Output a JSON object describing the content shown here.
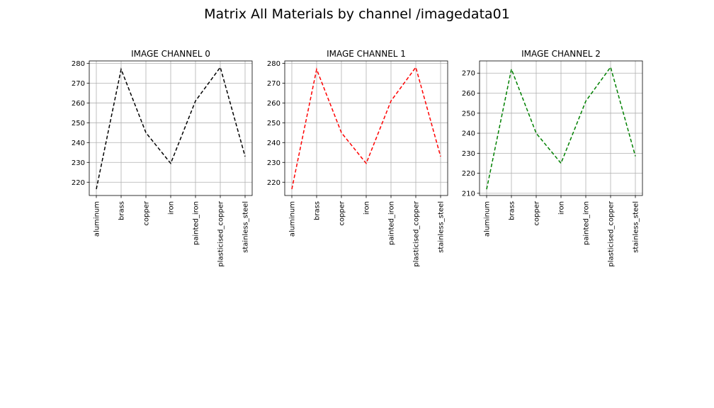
{
  "suptitle": "Matrix All Materials by channel /imagedata01",
  "chart_data": [
    {
      "type": "line",
      "title": "IMAGE CHANNEL 0",
      "categories": [
        "aluminum",
        "brass",
        "copper",
        "iron",
        "painted_iron",
        "plasticised_copper",
        "stainless_steel"
      ],
      "values": [
        216.5,
        277,
        245,
        229.5,
        261,
        278,
        233
      ],
      "ylim": [
        213.3,
        281.2
      ],
      "yticks": [
        220,
        230,
        240,
        250,
        260,
        270,
        280
      ],
      "color": "#000000",
      "line_style": "dashed",
      "grid": true
    },
    {
      "type": "line",
      "title": "IMAGE CHANNEL 1",
      "categories": [
        "aluminum",
        "brass",
        "copper",
        "iron",
        "painted_iron",
        "plasticised_copper",
        "stainless_steel"
      ],
      "values": [
        216.5,
        277,
        245,
        229.5,
        261,
        278,
        233
      ],
      "ylim": [
        213.3,
        281.2
      ],
      "yticks": [
        220,
        230,
        240,
        250,
        260,
        270,
        280
      ],
      "color": "#ff0000",
      "line_style": "dashed",
      "grid": true
    },
    {
      "type": "line",
      "title": "IMAGE CHANNEL 2",
      "categories": [
        "aluminum",
        "brass",
        "copper",
        "iron",
        "painted_iron",
        "plasticised_copper",
        "stainless_steel"
      ],
      "values": [
        212,
        272,
        240,
        225,
        256,
        273,
        228.5
      ],
      "ylim": [
        208.9,
        276.1
      ],
      "yticks": [
        210,
        220,
        230,
        240,
        250,
        260,
        270
      ],
      "color": "#008000",
      "line_style": "dashed",
      "grid": true
    }
  ]
}
